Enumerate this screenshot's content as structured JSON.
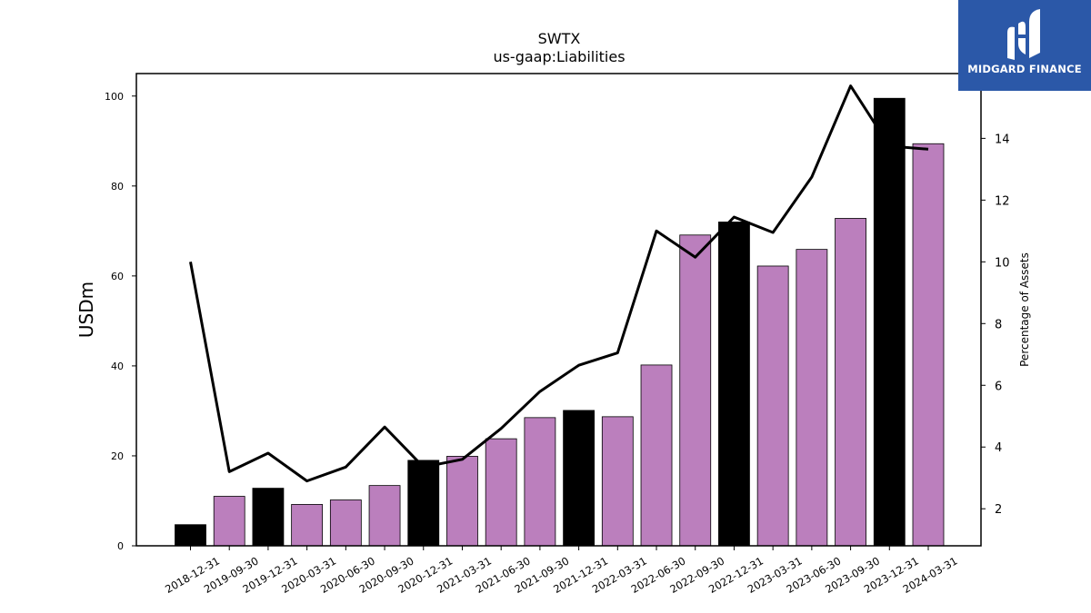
{
  "brand": {
    "name": "MIDGARD FINANCE",
    "bg_color": "#2b58a8",
    "icon": "midgard-logo-mark"
  },
  "chart_data": {
    "type": "bar",
    "title": "SWTX",
    "subtitle": "us-gaap:Liabilities",
    "ylabel": "USDm",
    "y2label": "Percentage of Assets",
    "ylim": [
      0,
      105
    ],
    "y2lim": [
      0.8,
      16.1
    ],
    "yticks": [
      0,
      20,
      40,
      60,
      80,
      100
    ],
    "y2ticks": [
      2,
      4,
      6,
      8,
      10,
      12,
      14
    ],
    "categories": [
      "2018-12-31",
      "2019-09-30",
      "2019-12-31",
      "2020-03-31",
      "2020-06-30",
      "2020-09-30",
      "2020-12-31",
      "2021-03-31",
      "2021-06-30",
      "2021-09-30",
      "2021-12-31",
      "2022-03-31",
      "2022-06-30",
      "2022-09-30",
      "2022-12-31",
      "2023-03-31",
      "2023-06-30",
      "2023-09-30",
      "2023-12-31",
      "2024-03-31"
    ],
    "series": [
      {
        "kind": "bar",
        "values": [
          4.7,
          11.0,
          12.8,
          9.2,
          10.2,
          13.4,
          19.0,
          19.9,
          23.8,
          28.5,
          30.1,
          28.7,
          40.2,
          69.1,
          72.0,
          62.2,
          65.9,
          72.8,
          99.5,
          89.4
        ],
        "colors": [
          "#000000",
          "#bb7fbd",
          "#000000",
          "#bb7fbd",
          "#bb7fbd",
          "#bb7fbd",
          "#000000",
          "#bb7fbd",
          "#bb7fbd",
          "#bb7fbd",
          "#000000",
          "#bb7fbd",
          "#bb7fbd",
          "#bb7fbd",
          "#000000",
          "#bb7fbd",
          "#bb7fbd",
          "#bb7fbd",
          "#000000",
          "#bb7fbd"
        ]
      },
      {
        "kind": "line",
        "axis": "y2",
        "color": "#000000",
        "values": [
          10.0,
          3.2,
          3.8,
          2.9,
          3.35,
          4.65,
          3.35,
          3.6,
          4.6,
          5.8,
          6.65,
          7.05,
          11.0,
          10.15,
          11.45,
          10.95,
          12.75,
          15.7,
          13.75,
          13.65
        ]
      }
    ],
    "grid": false
  }
}
